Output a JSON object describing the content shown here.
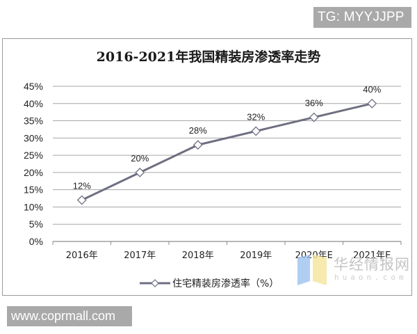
{
  "watermarks": {
    "top_right": "TG: MYYJJPP",
    "bottom_left": "www.coprmall.com",
    "source_logo_text": "华经情报网",
    "source_logo_sub": "huaon.com"
  },
  "chart": {
    "title": "2016-2021年我国精装房渗透率走势",
    "legend_label": "住宅精装房渗透率（%）",
    "line_color": "#6e6e82",
    "y_ticks": [
      "0%",
      "5%",
      "10%",
      "15%",
      "20%",
      "25%",
      "30%",
      "35%",
      "40%",
      "45%"
    ],
    "x_ticks": [
      "2016年",
      "2017年",
      "2018年",
      "2019年",
      "2020年E",
      "2021年E"
    ],
    "data_labels": [
      "12%",
      "20%",
      "28%",
      "32%",
      "36%",
      "40%"
    ]
  },
  "chart_data": {
    "type": "line",
    "title": "2016-2021年我国精装房渗透率走势",
    "categories": [
      "2016年",
      "2017年",
      "2018年",
      "2019年",
      "2020年E",
      "2021年E"
    ],
    "series": [
      {
        "name": "住宅精装房渗透率（%）",
        "values": [
          12,
          20,
          28,
          32,
          36,
          40
        ]
      }
    ],
    "xlabel": "",
    "ylabel": "",
    "ylim": [
      0,
      45
    ],
    "y_tick_step": 5,
    "y_format": "percent",
    "grid": true,
    "legend_position": "bottom",
    "marker": "hollow-diamond",
    "data_labels": true
  }
}
